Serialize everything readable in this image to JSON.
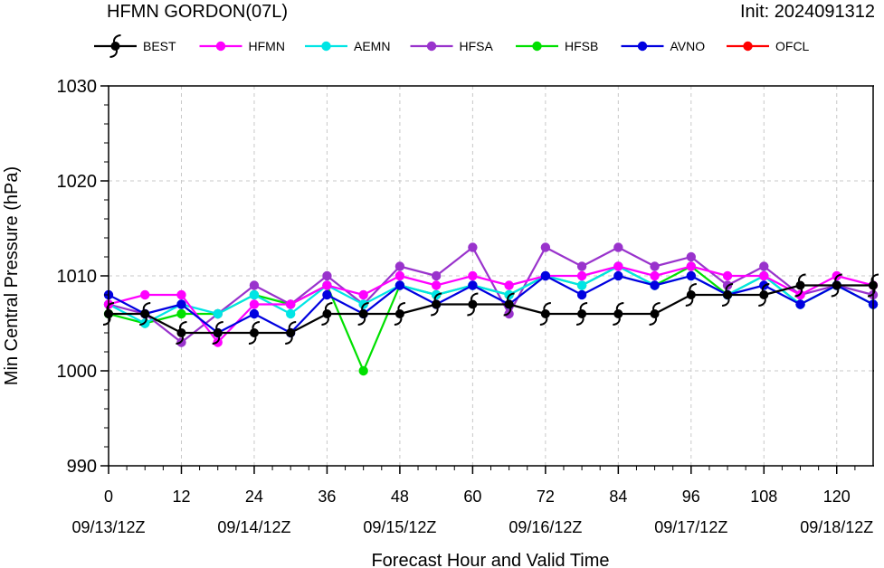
{
  "header": {
    "title": "HFMN GORDON(07L)",
    "init": "Init: 2024091312"
  },
  "chart_data": {
    "type": "line",
    "title": "HFMN GORDON(07L)",
    "xlabel": "Forecast Hour and Valid Time",
    "ylabel": "Min Central Pressure (hPa)",
    "xlim": [
      0,
      126
    ],
    "ylim": [
      990,
      1030
    ],
    "grid": true,
    "legend_position": "top",
    "x_ticks": [
      0,
      12,
      24,
      36,
      48,
      60,
      72,
      84,
      96,
      108,
      120
    ],
    "x_tick_labels": [
      "0",
      "12",
      "24",
      "36",
      "48",
      "60",
      "72",
      "84",
      "96",
      "108",
      "120"
    ],
    "x_date_ticks": [
      0,
      24,
      48,
      72,
      96,
      120
    ],
    "x_date_labels": [
      "09/13/12Z",
      "09/14/12Z",
      "09/15/12Z",
      "09/16/12Z",
      "09/17/12Z",
      "09/18/12Z"
    ],
    "y_ticks": [
      990,
      1000,
      1010,
      1020,
      1030
    ],
    "y_tick_labels": [
      "990",
      "1000",
      "1010",
      "1020",
      "1030"
    ],
    "series": [
      {
        "name": "HFMN",
        "color": "#ff00ff",
        "x": [
          0,
          6,
          12,
          18,
          24,
          30,
          36,
          42,
          48,
          54,
          60,
          66,
          72,
          78,
          84,
          90,
          96,
          102,
          108,
          114,
          120,
          126
        ],
        "y": [
          1007,
          1008,
          1008,
          1003,
          1007,
          1007,
          1009,
          1008,
          1010,
          1009,
          1010,
          1009,
          1010,
          1010,
          1011,
          1010,
          1011,
          1010,
          1010,
          1008,
          1010,
          1009
        ]
      },
      {
        "name": "AEMN",
        "color": "#00e5e5",
        "x": [
          0,
          6,
          12,
          18,
          24,
          30,
          36,
          42,
          48,
          54,
          60,
          66,
          72,
          78,
          84,
          90,
          96,
          102,
          108,
          114,
          120,
          126
        ],
        "y": [
          1007,
          1005,
          1007,
          1006,
          1008,
          1006,
          1009,
          1007,
          1009,
          1008,
          1009,
          1008,
          1010,
          1009,
          1011,
          1009,
          1010,
          1008,
          1010,
          1007,
          1009,
          1007
        ]
      },
      {
        "name": "HFSA",
        "color": "#9933cc",
        "x": [
          0,
          6,
          12,
          18,
          24,
          30,
          36,
          42,
          48,
          54,
          60,
          66,
          72,
          78,
          84,
          90,
          96,
          102,
          108,
          114,
          120,
          126
        ],
        "y": [
          1007,
          1006,
          1003,
          1006,
          1009,
          1007,
          1010,
          1007,
          1011,
          1010,
          1013,
          1006,
          1013,
          1011,
          1013,
          1011,
          1012,
          1009,
          1011,
          1008,
          1009,
          1008
        ]
      },
      {
        "name": "HFSB",
        "color": "#00e000",
        "x": [
          0,
          6,
          12,
          18,
          24,
          30,
          36,
          42,
          48,
          54,
          60,
          66,
          72,
          78,
          84,
          90,
          96,
          102,
          108,
          114,
          120,
          126
        ],
        "y": [
          1006,
          1005,
          1006,
          1006,
          1008,
          1007,
          1009,
          1000,
          1009,
          1008,
          1009,
          1008,
          1010,
          1009,
          1011,
          1009,
          1011,
          1008,
          1010,
          1007,
          1009,
          1007
        ]
      },
      {
        "name": "AVNO",
        "color": "#0000e0",
        "x": [
          0,
          6,
          12,
          18,
          24,
          30,
          36,
          42,
          48,
          54,
          60,
          66,
          72,
          78,
          84,
          90,
          96,
          102,
          108,
          114,
          120,
          126
        ],
        "y": [
          1008,
          1006,
          1007,
          1004,
          1006,
          1004,
          1008,
          1006,
          1009,
          1007,
          1009,
          1007,
          1010,
          1008,
          1010,
          1009,
          1010,
          1008,
          1009,
          1007,
          1009,
          1007
        ]
      },
      {
        "name": "OFCL",
        "color": "#ff0000",
        "x": [],
        "y": []
      },
      {
        "name": "BEST",
        "color": "#000000",
        "x": [
          0,
          6,
          12,
          18,
          24,
          30,
          36,
          42,
          48,
          54,
          60,
          66,
          72,
          78,
          84,
          90,
          96,
          102,
          108,
          114,
          120,
          126
        ],
        "y": [
          1006,
          1006,
          1004,
          1004,
          1004,
          1004,
          1006,
          1006,
          1006,
          1007,
          1007,
          1007,
          1006,
          1006,
          1006,
          1006,
          1008,
          1008,
          1008,
          1009,
          1009,
          1009
        ]
      }
    ],
    "legend_order": [
      "BEST",
      "HFMN",
      "AEMN",
      "HFSA",
      "HFSB",
      "AVNO",
      "OFCL"
    ]
  }
}
